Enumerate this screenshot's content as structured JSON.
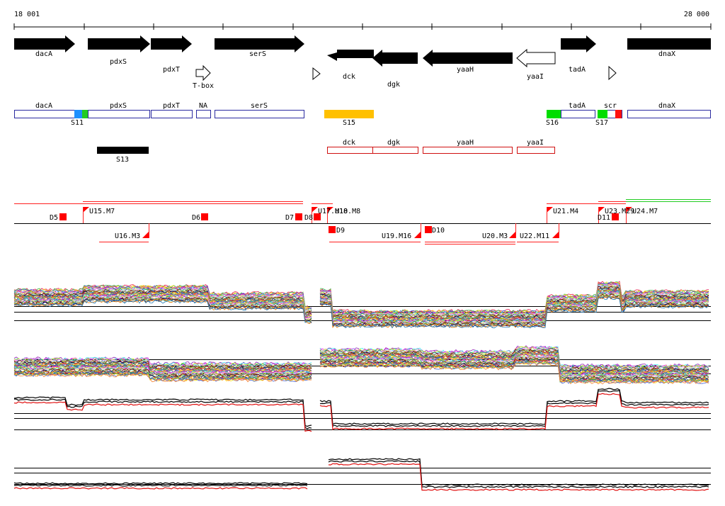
{
  "coordinates": {
    "start": "18 001",
    "end": "28 000"
  },
  "genes_top": [
    {
      "name": "dacA",
      "strand": "+",
      "filled": true
    },
    {
      "name": "pdxS",
      "strand": "+",
      "filled": true
    },
    {
      "name": "pdxT",
      "strand": "+",
      "filled": true
    },
    {
      "name": "serS",
      "strand": "+",
      "filled": true
    },
    {
      "name": "dck",
      "strand": "-",
      "filled": true
    },
    {
      "name": "dgk",
      "strand": "-",
      "filled": true
    },
    {
      "name": "yaaH",
      "strand": "-",
      "filled": true
    },
    {
      "name": "yaaI",
      "strand": "-",
      "filled": false
    },
    {
      "name": "tadA",
      "strand": "+",
      "filled": true
    },
    {
      "name": "dnaX",
      "strand": "+",
      "filled": true
    }
  ],
  "riboswitch_label": "T-box",
  "annotation_boxes_plus": [
    "dacA",
    "pdxS",
    "pdxT",
    "NA",
    "serS",
    "tadA",
    "scr",
    "dnaX"
  ],
  "annotation_boxes_minus": [
    "dck",
    "dgk",
    "yaaH",
    "yaaI"
  ],
  "segment_labels": [
    "S11",
    "S13",
    "S15",
    "S16",
    "S17"
  ],
  "colors": {
    "gene": "#000000",
    "plus_box": "#2a2aa0",
    "minus_box": "#d01010",
    "s11": "#1e90ff",
    "s11b": "#22cc22",
    "s15": "#ffc000",
    "s16": "#00dd00",
    "scr_red": "#ff1010",
    "marker": "#ff0000"
  },
  "upshift_labels": [
    "U15.M7",
    "U16.M3",
    "U17.M10",
    "U18.M8",
    "U19.M16",
    "U20.M3",
    "U21.M4",
    "U22.M11",
    "U23.M29",
    "U24.M7"
  ],
  "downshift_labels": [
    "D5",
    "D6",
    "D7",
    "D8",
    "D9",
    "D10",
    "D11"
  ]
}
